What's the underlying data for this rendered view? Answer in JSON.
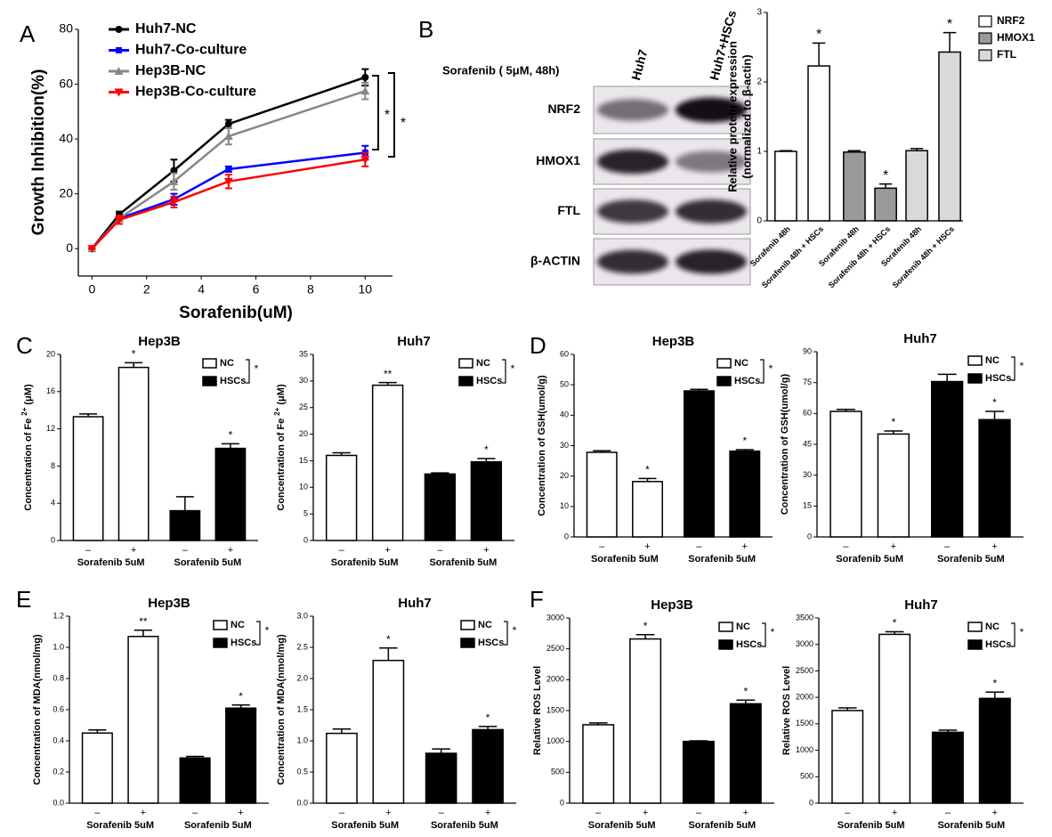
{
  "blot": {
    "panel": "B",
    "treatment": "Sorafenib ( 5μM, 48h)",
    "lanes": [
      "Huh7",
      "Huh7+HSCs"
    ],
    "proteins": [
      "NRF2",
      "HMOX1",
      "FTL",
      "β-ACTIN"
    ]
  },
  "chart_data": [
    {
      "type": "line",
      "panel": "A",
      "xlabel": "Sorafenib(uM)",
      "ylabel": "Growth Inhibition(%)",
      "x": [
        0,
        1,
        3,
        5,
        10
      ],
      "xlim": [
        -0.5,
        11
      ],
      "xticks": [
        0,
        2,
        4,
        6,
        8,
        10
      ],
      "ylim": [
        -10,
        80
      ],
      "yticks": [
        0,
        20,
        40,
        60,
        80
      ],
      "series": [
        {
          "name": "Huh7-NC",
          "color": "#000000",
          "marker": "circle",
          "values": [
            0,
            12.5,
            28.5,
            45.5,
            62.5
          ],
          "errors": [
            0,
            1,
            4,
            1.5,
            3
          ]
        },
        {
          "name": "Huh7-Co-culture",
          "color": "#0000ff",
          "marker": "square",
          "values": [
            0,
            11,
            18,
            29,
            35
          ],
          "errors": [
            0,
            1,
            2,
            1,
            2.5
          ]
        },
        {
          "name": "Hep3B-NC",
          "color": "#888888",
          "marker": "triangle-up",
          "values": [
            0,
            11,
            24.5,
            41,
            57.5
          ],
          "errors": [
            0,
            1,
            3,
            3,
            3
          ]
        },
        {
          "name": "Hep3B-Co-culture",
          "color": "#ff0000",
          "marker": "triangle-down",
          "values": [
            0,
            10.5,
            17,
            24.5,
            32.5
          ],
          "errors": [
            0,
            1.5,
            2,
            2.5,
            2.5
          ]
        }
      ],
      "annotations": [
        "*",
        "*"
      ]
    },
    {
      "type": "bar",
      "ylabel": [
        "Relative protein expression",
        "(normalized to β-actin)"
      ],
      "categories": [
        "Sorafenib 48h",
        "Sorafenib 48h + HSCs",
        "Sorafenib 48h",
        "Sorafenib 48h + HSCs",
        "Sorafenib 48h",
        "Sorafenib 48h + HSCs"
      ],
      "ylim": [
        0,
        3
      ],
      "yticks": [
        0,
        1,
        2,
        3
      ],
      "series": [
        {
          "name": "NRF2",
          "color": "#ffffff",
          "values": [
            1,
            2.23,
            null,
            null,
            null,
            null
          ],
          "errors": [
            0.01,
            0.33,
            null,
            null,
            null,
            null
          ]
        },
        {
          "name": "HMOX1",
          "color": "#9a9a9a",
          "values": [
            null,
            null,
            0.99,
            0.47,
            null,
            null
          ],
          "errors": [
            null,
            null,
            0.02,
            0.06,
            null,
            null
          ]
        },
        {
          "name": "FTL",
          "color": "#d9d9d9",
          "values": [
            null,
            null,
            null,
            null,
            1.01,
            2.43
          ],
          "errors": [
            null,
            null,
            null,
            null,
            0.03,
            0.28
          ]
        }
      ],
      "stars": [
        null,
        "*",
        null,
        "*",
        null,
        "*"
      ]
    },
    {
      "type": "bar",
      "panel": "C",
      "title": "Hep3B",
      "ylabel": "Concentration of Fe",
      "ylabel_sup": "2+",
      "ylabel_unit": "(μM)",
      "categories": [
        "–",
        "+",
        "–",
        "+"
      ],
      "groups": [
        "Sorafenib 5uM",
        "Sorafenib 5uM"
      ],
      "ylim": [
        0,
        20
      ],
      "yticks": [
        0,
        4,
        8,
        12,
        16,
        20
      ],
      "series": [
        {
          "name": "NC",
          "color": "#ffffff",
          "values": [
            13.3,
            18.6,
            null,
            null
          ],
          "errors": [
            0.3,
            0.5,
            null,
            null
          ]
        },
        {
          "name": "HSCs",
          "color": "#000000",
          "values": [
            null,
            null,
            3.2,
            9.9
          ],
          "errors": [
            null,
            null,
            1.5,
            0.5
          ]
        }
      ],
      "stars": [
        null,
        "*",
        null,
        "*"
      ],
      "significance": "*"
    },
    {
      "type": "bar",
      "title": "Huh7",
      "ylabel": "Concentration of Fe",
      "ylabel_sup": "2+",
      "ylabel_unit": "(μM)",
      "categories": [
        "–",
        "+",
        "–",
        "+"
      ],
      "groups": [
        "Sorafenib 5uM",
        "Sorafenib 5uM"
      ],
      "ylim": [
        0,
        35
      ],
      "yticks": [
        0,
        5,
        10,
        15,
        20,
        25,
        30,
        35
      ],
      "series": [
        {
          "name": "NC",
          "color": "#ffffff",
          "values": [
            16,
            29.2,
            null,
            null
          ],
          "errors": [
            0.5,
            0.5,
            null,
            null
          ]
        },
        {
          "name": "HSCs",
          "color": "#000000",
          "values": [
            null,
            null,
            12.5,
            14.8
          ],
          "errors": [
            null,
            null,
            0.2,
            0.6
          ]
        }
      ],
      "stars": [
        null,
        "**",
        null,
        "*"
      ],
      "significance": "*"
    },
    {
      "type": "bar",
      "panel": "D",
      "title": "Hep3B",
      "ylabel": "Concentration of GSH(umol/g)",
      "categories": [
        "–",
        "+",
        "–",
        "+"
      ],
      "groups": [
        "Sorafenib 5uM",
        "Sorafenib 5uM"
      ],
      "ylim": [
        0,
        60
      ],
      "yticks": [
        0,
        10,
        20,
        30,
        40,
        50,
        60
      ],
      "series": [
        {
          "name": "NC",
          "color": "#ffffff",
          "values": [
            27.8,
            18.2,
            null,
            null
          ],
          "errors": [
            0.5,
            1,
            null,
            null
          ]
        },
        {
          "name": "HSCs",
          "color": "#000000",
          "values": [
            null,
            null,
            48,
            28.2
          ],
          "errors": [
            null,
            null,
            0.5,
            0.5
          ]
        }
      ],
      "stars": [
        null,
        "*",
        null,
        "*"
      ],
      "significance": "*"
    },
    {
      "type": "bar",
      "title": "Huh7",
      "ylabel": "Concentration of GSH(umol/g)",
      "categories": [
        "–",
        "+",
        "–",
        "+"
      ],
      "groups": [
        "Sorafenib 5uM",
        "Sorafenib 5uM"
      ],
      "ylim": [
        0,
        90
      ],
      "yticks": [
        0,
        15,
        30,
        45,
        60,
        75,
        90
      ],
      "series": [
        {
          "name": "NC",
          "color": "#ffffff",
          "values": [
            61,
            50,
            null,
            null
          ],
          "errors": [
            1,
            1.5,
            null,
            null
          ]
        },
        {
          "name": "HSCs",
          "color": "#000000",
          "values": [
            null,
            null,
            75.5,
            57
          ],
          "errors": [
            null,
            null,
            3.5,
            4
          ]
        }
      ],
      "stars": [
        null,
        "*",
        null,
        "*"
      ],
      "significance": "*"
    },
    {
      "type": "bar",
      "panel": "E",
      "title": "Hep3B",
      "ylabel": "Concentration of MDA(nmol/mg)",
      "categories": [
        "–",
        "+",
        "–",
        "+"
      ],
      "groups": [
        "Sorafenib 5uM",
        "Sorafenib 5uM"
      ],
      "ylim": [
        0,
        1.2
      ],
      "yticks": [
        {
          "value": 0,
          "label": "0.0"
        },
        0.2,
        0.4,
        0.6,
        0.8,
        {
          "value": 1,
          "label": "1.0"
        },
        1.2
      ],
      "series": [
        {
          "name": "NC",
          "color": "#ffffff",
          "values": [
            0.45,
            1.07,
            null,
            null
          ],
          "errors": [
            0.02,
            0.04,
            null,
            null
          ]
        },
        {
          "name": "HSCs",
          "color": "#000000",
          "values": [
            null,
            null,
            0.29,
            0.61
          ],
          "errors": [
            null,
            null,
            0.01,
            0.02
          ]
        }
      ],
      "stars": [
        null,
        "**",
        null,
        "*"
      ],
      "significance": "*"
    },
    {
      "type": "bar",
      "title": "Huh7",
      "ylabel": "Concentration of MDA(nmol/mg)",
      "categories": [
        "–",
        "+",
        "–",
        "+"
      ],
      "groups": [
        "Sorafenib 5uM",
        "Sorafenib 5uM"
      ],
      "ylim": [
        0,
        3
      ],
      "yticks": [
        {
          "value": 0,
          "label": "0.0"
        },
        0.5,
        {
          "value": 1,
          "label": "1.0"
        },
        1.5,
        {
          "value": 2,
          "label": "2.0"
        },
        2.5,
        {
          "value": 3,
          "label": "3.0"
        }
      ],
      "series": [
        {
          "name": "NC",
          "color": "#ffffff",
          "values": [
            1.12,
            2.29,
            null,
            null
          ],
          "errors": [
            0.07,
            0.2,
            null,
            null
          ]
        },
        {
          "name": "HSCs",
          "color": "#000000",
          "values": [
            null,
            null,
            0.8,
            1.18
          ],
          "errors": [
            null,
            null,
            0.07,
            0.05
          ]
        }
      ],
      "stars": [
        null,
        "*",
        null,
        "*"
      ],
      "significance": "*"
    },
    {
      "type": "bar",
      "panel": "F",
      "title": "Hep3B",
      "ylabel": "Relative ROS Level",
      "categories": [
        "–",
        "+",
        "–",
        "+"
      ],
      "groups": [
        "Sorafenib 5uM",
        "Sorafenib 5uM"
      ],
      "ylim": [
        0,
        3000
      ],
      "yticks": [
        0,
        500,
        1000,
        1500,
        2000,
        2500,
        3000
      ],
      "series": [
        {
          "name": "NC",
          "color": "#ffffff",
          "values": [
            1270,
            2660,
            null,
            null
          ],
          "errors": [
            30,
            70,
            null,
            null
          ]
        },
        {
          "name": "HSCs",
          "color": "#000000",
          "values": [
            null,
            null,
            1000,
            1610
          ],
          "errors": [
            null,
            null,
            10,
            60
          ]
        }
      ],
      "stars": [
        null,
        "*",
        null,
        "*"
      ],
      "significance": "*"
    },
    {
      "type": "bar",
      "title": "Huh7",
      "ylabel": "Relative ROS Level",
      "categories": [
        "–",
        "+",
        "–",
        "+"
      ],
      "groups": [
        "Sorafenib 5uM",
        "Sorafenib 5uM"
      ],
      "ylim": [
        0,
        3500
      ],
      "yticks": [
        0,
        500,
        1000,
        1500,
        2000,
        2500,
        3000,
        3500
      ],
      "series": [
        {
          "name": "NC",
          "color": "#ffffff",
          "values": [
            1750,
            3190,
            null,
            null
          ],
          "errors": [
            50,
            50,
            null,
            null
          ]
        },
        {
          "name": "HSCs",
          "color": "#000000",
          "values": [
            null,
            null,
            1340,
            1980
          ],
          "errors": [
            null,
            null,
            40,
            120
          ]
        }
      ],
      "stars": [
        null,
        "*",
        null,
        "*"
      ],
      "significance": "*"
    }
  ]
}
